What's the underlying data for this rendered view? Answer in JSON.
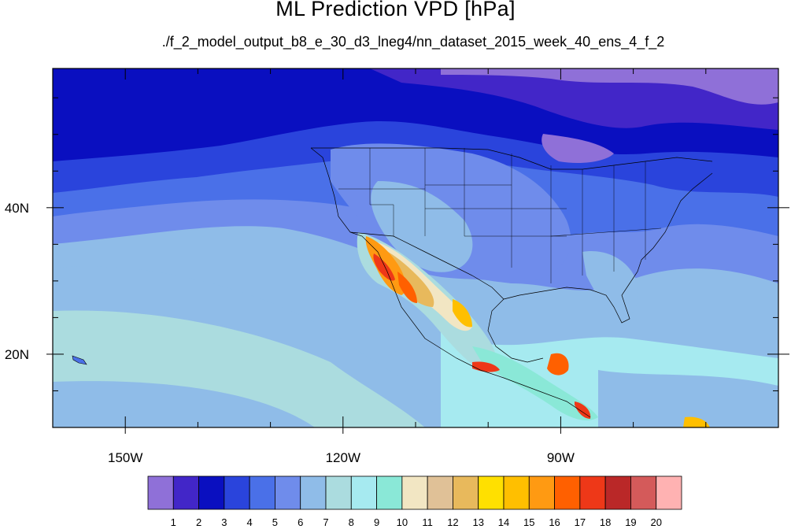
{
  "title": "ML Prediction VPD [hPa]",
  "subtitle": "./f_2_model_output_b8_e_30_d3_lneg4/nn_dataset_2015_week_40_ens_4_f_2",
  "map": {
    "lon_range": [
      -160,
      -60
    ],
    "lat_range": [
      10,
      59
    ],
    "x_ticks": [
      {
        "lon": -150,
        "label": "150W"
      },
      {
        "lon": -120,
        "label": "120W"
      },
      {
        "lon": -90,
        "label": "90W"
      }
    ],
    "y_ticks": [
      {
        "lat": 40,
        "label": "40N"
      },
      {
        "lat": 20,
        "label": "20N"
      }
    ]
  },
  "colorbar": {
    "colors": [
      "#8f70d8",
      "#4226c8",
      "#0a0fc0",
      "#2a44dc",
      "#4a70e8",
      "#6f8ceb",
      "#8fbce8",
      "#abdcdf",
      "#a6eaf0",
      "#8ae8d7",
      "#f2e6c3",
      "#e0c197",
      "#e8b95c",
      "#ffe000",
      "#ffbf00",
      "#ff9a12",
      "#ff6000",
      "#ee3818",
      "#ba2828",
      "#d45a5a",
      "#ffb2b2"
    ],
    "labels": [
      "1",
      "2",
      "3",
      "4",
      "5",
      "6",
      "7",
      "8",
      "9",
      "10",
      "11",
      "12",
      "13",
      "14",
      "15",
      "16",
      "17",
      "18",
      "19",
      "20"
    ]
  }
}
